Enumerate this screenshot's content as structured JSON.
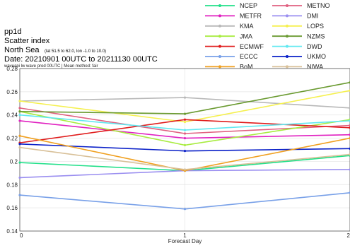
{
  "header": {
    "line1": "pp1d",
    "line2": "Scatter index",
    "region": "North Sea",
    "region_coords": "(lat  51.5 to 62.0, lon  -1.0 to 10.0)",
    "date_range": "Date: 20210901 00UTC to 20211130 00UTC",
    "subtitle": "waveapi lw wave prod 00UTC | Mean method: fair"
  },
  "chart_data": {
    "type": "line",
    "xlabel": "Forecast Day",
    "ylabel": "",
    "x": [
      0,
      1,
      2
    ],
    "xlim": [
      0,
      2
    ],
    "ylim": [
      0.14,
      0.28
    ],
    "x_ticks": [
      "0",
      "1",
      "2"
    ],
    "y_ticks": [
      "0.14",
      "0.16",
      "0.18",
      "0.2",
      "0.22",
      "0.24",
      "0.26",
      "0.28"
    ],
    "grid": true,
    "legend_position": "top-right",
    "series": [
      {
        "name": "NCEP",
        "color": "#22e08a",
        "values": [
          0.199,
          0.192,
          0.205
        ]
      },
      {
        "name": "METNO",
        "color": "#e06080",
        "values": [
          0.246,
          0.224,
          0.231
        ]
      },
      {
        "name": "METFR",
        "color": "#e020c0",
        "values": [
          0.235,
          0.22,
          0.223
        ]
      },
      {
        "name": "DMI",
        "color": "#9a8ef0",
        "values": [
          0.186,
          0.192,
          0.193
        ]
      },
      {
        "name": "KMA",
        "color": "#b8b8b8",
        "values": [
          0.252,
          0.255,
          0.246
        ]
      },
      {
        "name": "LOPS",
        "color": "#f5f050",
        "values": [
          0.252,
          0.234,
          0.261
        ]
      },
      {
        "name": "JMA",
        "color": "#a8ec40",
        "values": [
          0.243,
          0.214,
          0.236
        ]
      },
      {
        "name": "NZMS",
        "color": "#6a9a30",
        "values": [
          0.243,
          0.241,
          0.268
        ]
      },
      {
        "name": "ECMWF",
        "color": "#e01c1c",
        "values": [
          0.216,
          0.236,
          0.229
        ]
      },
      {
        "name": "DWD",
        "color": "#60e8f0",
        "values": [
          0.24,
          0.227,
          0.235
        ]
      },
      {
        "name": "ECCC",
        "color": "#78a0e8",
        "values": [
          0.171,
          0.159,
          0.173
        ]
      },
      {
        "name": "UKMO",
        "color": "#0a20c8",
        "values": [
          0.215,
          0.209,
          0.211
        ]
      },
      {
        "name": "BoM",
        "color": "#f0a020",
        "values": [
          0.222,
          0.192,
          0.22
        ]
      },
      {
        "name": "NIWA",
        "color": "#d8c098",
        "values": [
          0.212,
          0.193,
          0.206
        ]
      }
    ]
  }
}
